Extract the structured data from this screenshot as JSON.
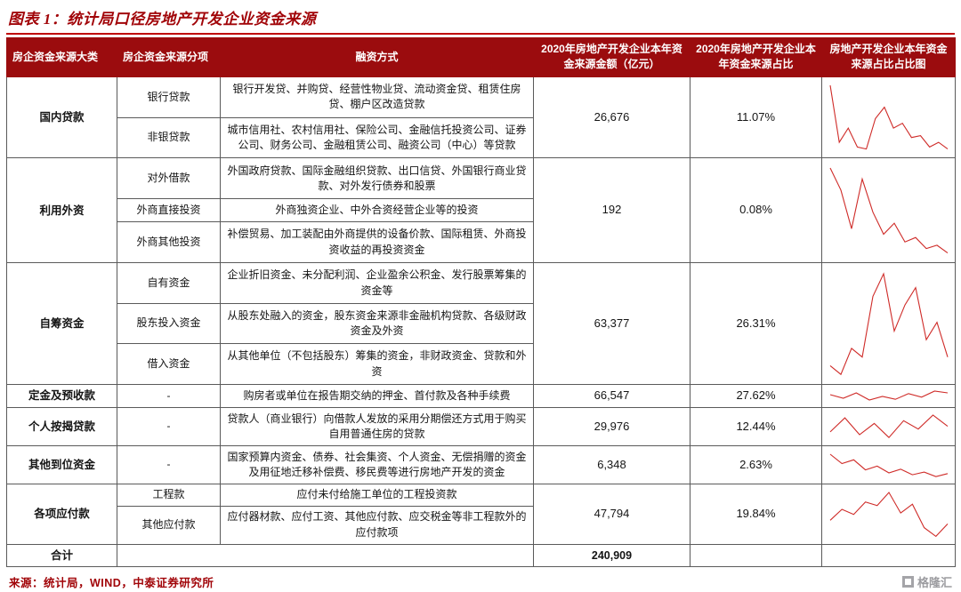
{
  "title": "图表 1：统计局口径房地产开发企业资金来源",
  "source": "来源：统计局，WIND，中泰证券研究所",
  "logo_text": "格隆汇",
  "colors": {
    "header_bg": "#9b0c0e",
    "title_red": "#a10408",
    "rule_red": "#c00404",
    "spark_red": "#cf2b28"
  },
  "table": {
    "headers": [
      "房企资金来源大类",
      "房企资金来源分项",
      "融资方式",
      "2020年房地产开发企业本年资金来源金额（亿元）",
      "2020年房地产开发企业本年资金来源占比",
      "房地产开发企业本年资金来源占比占比图"
    ],
    "groups": [
      {
        "category": "国内贷款",
        "amount": "26,676",
        "share": "11.07%",
        "rows": [
          {
            "label": "银行贷款",
            "desc": "银行开发贷、并购贷、经营性物业贷、流动资金贷、租赁住房贷、棚户区改造贷款"
          },
          {
            "label": "非银贷款",
            "desc": "城市信用社、农村信用社、保险公司、金融信托投资公司、证券公司、财务公司、金融租赁公司、融资公司（中心）等贷款"
          }
        ],
        "spark": [
          95,
          35,
          50,
          30,
          28,
          60,
          72,
          50,
          55,
          40,
          42,
          30,
          35,
          28
        ]
      },
      {
        "category": "利用外资",
        "amount": "192",
        "share": "0.08%",
        "rows": [
          {
            "label": "对外借款",
            "desc": "外国政府贷款、国际金融组织贷款、出口信贷、外国银行商业贷款、对外发行债券和股票"
          },
          {
            "label": "外商直接投资",
            "desc": "外商独资企业、中外合资经营企业等的投资"
          },
          {
            "label": "外商其他投资",
            "desc": "补偿贸易、加工装配由外商提供的设备价款、国际租赁、外商投资收益的再投资资金"
          }
        ],
        "spark": [
          85,
          65,
          30,
          75,
          45,
          25,
          35,
          18,
          22,
          12,
          15,
          8
        ]
      },
      {
        "category": "自筹资金",
        "amount": "63,377",
        "share": "26.31%",
        "rows": [
          {
            "label": "自有资金",
            "desc": "企业折旧资金、未分配利润、企业盈余公积金、发行股票筹集的资金等"
          },
          {
            "label": "股东投入资金",
            "desc": "从股东处融入的资金，股东资金来源非金融机构贷款、各级财政资金及外资"
          },
          {
            "label": "借入资金",
            "desc": "从其他单位（不包括股东）筹集的资金，非财政资金、贷款和外资"
          }
        ],
        "spark": [
          35,
          30,
          45,
          40,
          75,
          88,
          55,
          70,
          80,
          50,
          60,
          40
        ]
      },
      {
        "category": "定金及预收款",
        "amount": "66,547",
        "share": "27.62%",
        "rows": [
          {
            "label": "-",
            "desc": "购房者或单位在报告期交纳的押金、首付款及各种手续费"
          }
        ],
        "spark": [
          55,
          45,
          60,
          40,
          50,
          42,
          58,
          48,
          65,
          60
        ]
      },
      {
        "category": "个人按揭贷款",
        "amount": "29,976",
        "share": "12.44%",
        "rows": [
          {
            "label": "-",
            "desc": "贷款人（商业银行）向借款人发放的采用分期偿还方式用于购买自用普通住房的贷款"
          }
        ],
        "spark": [
          40,
          65,
          35,
          55,
          30,
          60,
          45,
          70,
          50
        ]
      },
      {
        "category": "其他到位资金",
        "amount": "6,348",
        "share": "2.63%",
        "rows": [
          {
            "label": "-",
            "desc": "国家预算内资金、债券、社会集资、个人资金、无偿捐赠的资金及用征地迁移补偿费、移民费等进行房地产开发的资金"
          }
        ],
        "spark": [
          80,
          55,
          65,
          38,
          48,
          30,
          40,
          25,
          32,
          20,
          28
        ]
      },
      {
        "category": "各项应付款",
        "amount": "47,794",
        "share": "19.84%",
        "rows": [
          {
            "label": "工程款",
            "desc": "应付未付给施工单位的工程投资款"
          },
          {
            "label": "其他应付款",
            "desc": "应付器材款、应付工资、其他应付款、应交税金等非工程款外的应付款项"
          }
        ],
        "spark": [
          40,
          55,
          48,
          65,
          60,
          78,
          50,
          62,
          30,
          18,
          35
        ]
      }
    ],
    "total_label": "合计",
    "total_amount": "240,909"
  }
}
